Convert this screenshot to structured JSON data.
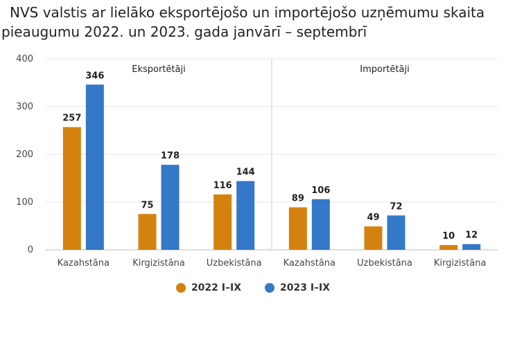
{
  "title_lines": [
    "NVS valstis ar lielāko eksportējošo un importējošo uzņēmumu skaita",
    "pieaugumu 2022. un 2023. gada janvārī – septembrī"
  ],
  "colors": {
    "series_2022": "#D4820F",
    "series_2023": "#3478C8",
    "grid": "#e6e6e6",
    "divider": "#cccccc"
  },
  "chart_data": {
    "type": "bar",
    "title": "NVS valstis ar lielāko eksportējošo un importējošo uzņēmumu skaita pieaugumu 2022. un 2023. gada janvārī – septembrī",
    "ylim": [
      0,
      400
    ],
    "yticks": [
      0,
      100,
      200,
      300,
      400
    ],
    "grid": true,
    "legend_position": "bottom",
    "groups": [
      {
        "label": "Eksportētāji",
        "categories": [
          "Kazahstāna",
          "Kirgizistāna",
          "Uzbekistāna"
        ]
      },
      {
        "label": "Importētāji",
        "categories": [
          "Kazahstāna",
          "Uzbekistāna",
          "Kirgizistāna"
        ]
      }
    ],
    "series": [
      {
        "name": "2022 I–IX",
        "values": [
          257,
          75,
          116,
          89,
          49,
          10
        ]
      },
      {
        "name": "2023 I–IX",
        "values": [
          346,
          178,
          144,
          106,
          72,
          12
        ]
      }
    ]
  }
}
